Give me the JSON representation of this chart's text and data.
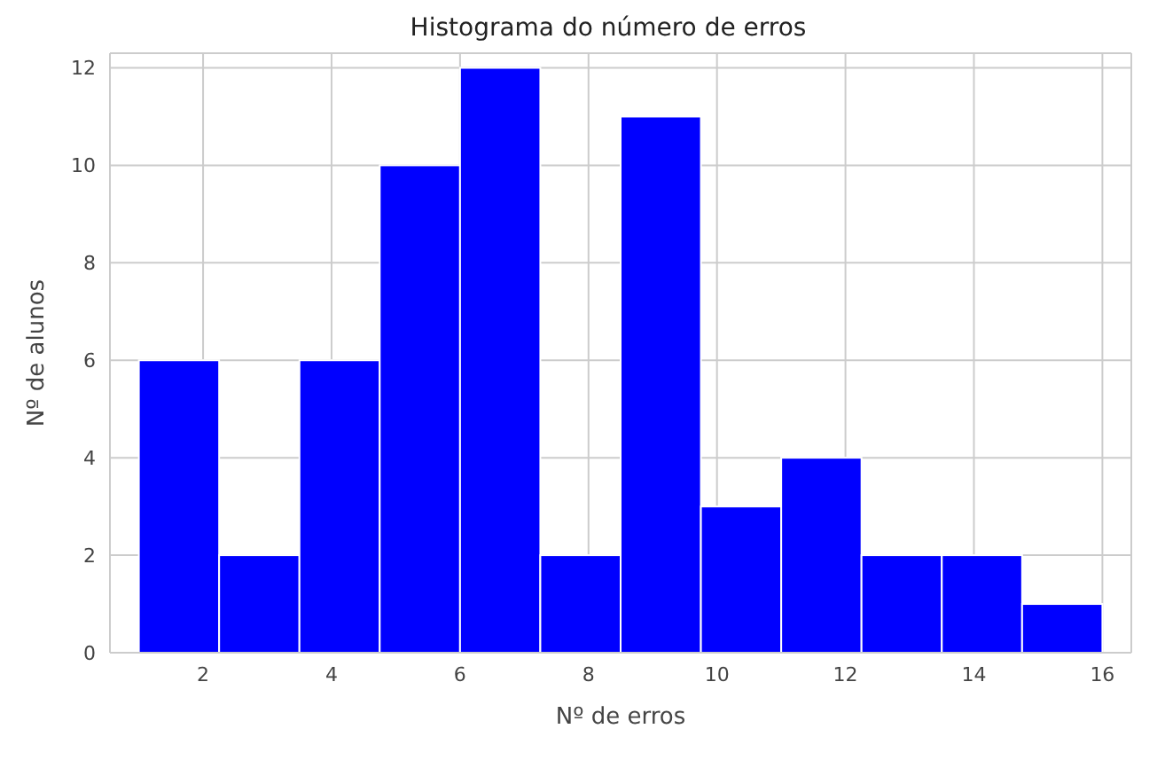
{
  "chart_data": {
    "type": "histogram",
    "title": "Histograma do número de erros",
    "xlabel": "Nº de erros",
    "ylabel": "Nº de alunos",
    "bins": [
      1,
      2.25,
      3.5,
      4.75,
      6,
      7.25,
      8.5,
      9.75,
      11,
      12.25,
      13.5,
      14.75,
      16
    ],
    "values": [
      6,
      2,
      6,
      10,
      12,
      2,
      11,
      3,
      4,
      2,
      2,
      1
    ],
    "color": "#0000ff",
    "xlim": [
      0.55,
      16.45
    ],
    "ylim": [
      0,
      12.3
    ],
    "xticks": [
      2,
      4,
      6,
      8,
      10,
      12,
      14,
      16
    ],
    "yticks": [
      0,
      2,
      4,
      6,
      8,
      10,
      12
    ],
    "grid": true
  }
}
